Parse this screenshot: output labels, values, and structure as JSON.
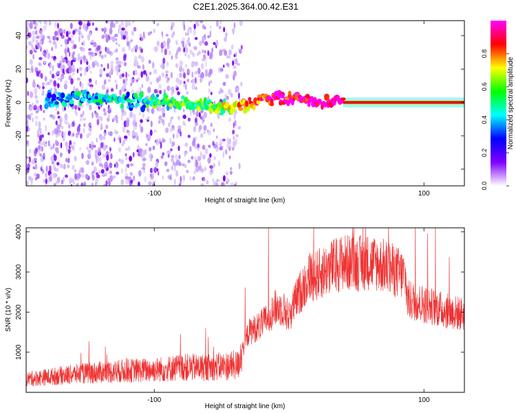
{
  "title": "C2E1.2025.364.00.42.E31",
  "chart_data": [
    {
      "type": "heatmap",
      "title": "C2E1.2025.364.00.42.E31",
      "xlabel": "Height of straight line (km)",
      "ylabel": "Frequency (Hz)",
      "xlim": [
        -195,
        130
      ],
      "ylim": [
        -50,
        49
      ],
      "x_ticks": [
        -100,
        100
      ],
      "x_tick_labels": [
        "-100",
        "100"
      ],
      "y_ticks": [
        40,
        20,
        0,
        -20,
        -40
      ],
      "y_tick_labels": [
        "40",
        "20",
        "0",
        "-20",
        "-40"
      ],
      "colorbar": {
        "label": "Normalized spectral amplitude",
        "range": [
          0.0,
          1.0
        ],
        "ticks": [
          0.0,
          0.2,
          0.4,
          0.6,
          0.8
        ],
        "tick_labels": [
          "0.0",
          "0.2",
          "0.4",
          "0.6",
          "0.8"
        ],
        "colors": [
          "#ffffff",
          "#7f00ff",
          "#0000ff",
          "#00ffff",
          "#00ff00",
          "#ffff00",
          "#ff0000",
          "#ff00ff"
        ]
      },
      "ridge": {
        "x": [
          -180,
          -160,
          -140,
          -120,
          -100,
          -80,
          -60,
          -45,
          -35,
          -25,
          -15,
          -5,
          5,
          15,
          40,
          130
        ],
        "center_hz": [
          2,
          3,
          2,
          1,
          0,
          -1,
          -2,
          -3,
          -2,
          0,
          2,
          3,
          2,
          1,
          0,
          0
        ],
        "amplitude": [
          0.2,
          0.28,
          0.35,
          0.3,
          0.42,
          0.45,
          0.5,
          0.6,
          0.72,
          0.82,
          0.88,
          0.9,
          0.9,
          0.92,
          1.0,
          1.0
        ]
      },
      "noise_region_km": [
        -195,
        -35
      ],
      "noise_hz": [
        -50,
        49
      ]
    },
    {
      "type": "line",
      "xlabel": "Height of straight line (km)",
      "ylabel": "SNR (10 * v/v)",
      "xlim": [
        -195,
        130
      ],
      "ylim": [
        0,
        4100
      ],
      "x_ticks": [
        -100,
        100
      ],
      "x_tick_labels": [
        "-100",
        "100"
      ],
      "y_ticks": [
        1000,
        2000,
        3000,
        4000
      ],
      "y_tick_labels": [
        "1000",
        "2000",
        "3000",
        "4000"
      ],
      "series": [
        {
          "name": "SNR",
          "color": "#ee3333",
          "x": [
            -195,
            -180,
            -160,
            -140,
            -120,
            -100,
            -80,
            -60,
            -45,
            -38,
            -35,
            -30,
            -25,
            -20,
            -15,
            -10,
            -5,
            0,
            5,
            10,
            15,
            20,
            30,
            40,
            50,
            60,
            70,
            80,
            86,
            88,
            100,
            110,
            120,
            130
          ],
          "y": [
            330,
            380,
            450,
            500,
            540,
            560,
            620,
            620,
            660,
            680,
            1050,
            1500,
            1600,
            1700,
            1900,
            2100,
            2100,
            1900,
            2300,
            2600,
            2900,
            2900,
            3100,
            3250,
            3200,
            3250,
            3150,
            3000,
            2900,
            2300,
            2200,
            2100,
            2000,
            1950
          ]
        }
      ]
    }
  ]
}
